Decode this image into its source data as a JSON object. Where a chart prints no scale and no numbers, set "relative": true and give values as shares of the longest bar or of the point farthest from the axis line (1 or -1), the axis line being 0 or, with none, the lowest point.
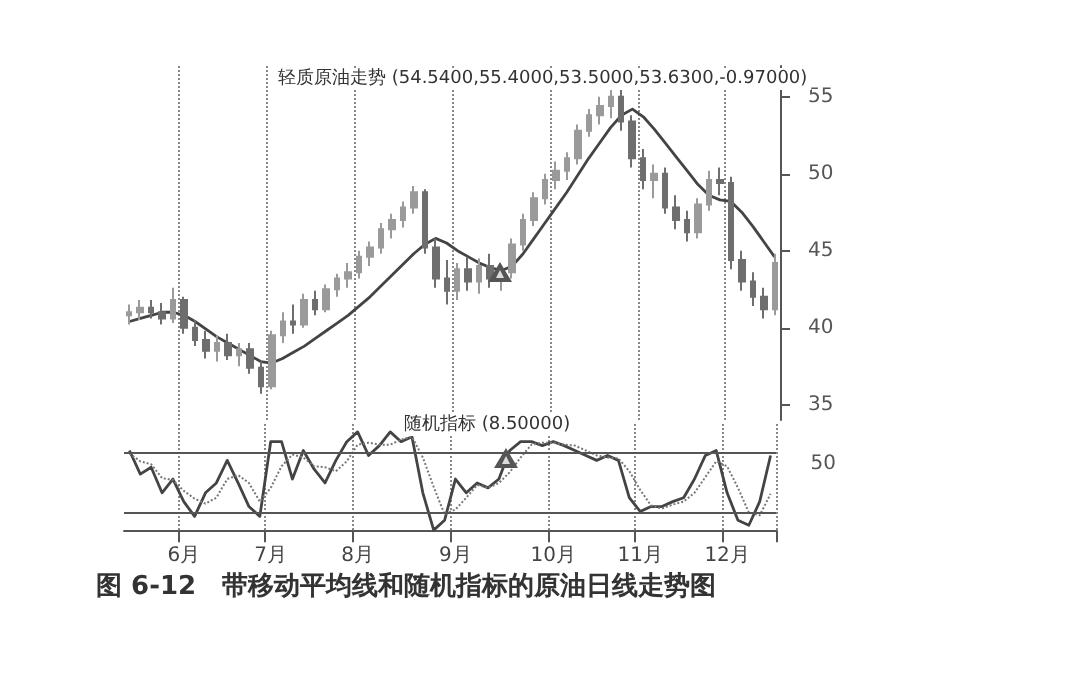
{
  "chart_data": [
    {
      "type": "candlestick",
      "title": "轻质原油走势 (54.5400,55.4000,53.5000,53.6300,-0.97000)",
      "colors": [
        "#9a9a9a",
        "#9a9a9a",
        "#6e6e6e",
        "#6e6e6e",
        "#9a9a9a",
        "#6e6e6e",
        "#6e6e6e",
        "#6e6e6e",
        "#9a9a9a",
        "#6e6e6e",
        "#9a9a9a",
        "#6e6e6e",
        "#6e6e6e",
        "#9a9a9a",
        "#9a9a9a",
        "#6e6e6e",
        "#9a9a9a",
        "#6e6e6e",
        "#9a9a9a",
        "#9a9a9a",
        "#9a9a9a",
        "#9a9a9a",
        "#9a9a9a",
        "#9a9a9a",
        "#9a9a9a",
        "#9a9a9a",
        "#9a9a9a",
        "#6e6e6e",
        "#6e6e6e",
        "#6e6e6e",
        "#9a9a9a",
        "#6e6e6e",
        "#9a9a9a",
        "#6e6e6e",
        "#9a9a9a",
        "#9a9a9a",
        "#9a9a9a",
        "#9a9a9a",
        "#9a9a9a",
        "#9a9a9a",
        "#9a9a9a",
        "#9a9a9a",
        "#9a9a9a",
        "#9a9a9a",
        "#9a9a9a",
        "#6e6e6e",
        "#6e6e6e",
        "#6e6e6e",
        "#9a9a9a",
        "#6e6e6e",
        "#6e6e6e",
        "#6e6e6e",
        "#9a9a9a",
        "#9a9a9a",
        "#6e6e6e",
        "#6e6e6e",
        "#6e6e6e",
        "#6e6e6e",
        "#6e6e6e",
        "#9a9a9a"
      ],
      "categories": [
        null,
        null,
        null,
        null,
        null,
        null,
        null,
        null,
        null,
        null,
        null,
        null,
        null,
        null,
        null,
        null,
        null,
        null,
        null,
        null,
        null,
        null,
        null,
        null,
        null,
        null,
        null,
        null,
        null,
        null,
        null,
        null,
        null,
        null,
        null,
        null,
        null,
        null,
        null,
        null,
        null,
        null,
        null,
        null,
        null,
        null,
        null,
        null,
        null,
        null,
        null,
        null,
        null,
        null,
        null,
        null,
        null,
        null,
        null,
        null
      ],
      "ohlc": [
        [
          40.8,
          41.5,
          40.2,
          41
        ],
        [
          41,
          41.8,
          40.5,
          41.3
        ],
        [
          41.3,
          41.8,
          40.6,
          41
        ],
        [
          41,
          41.6,
          40.2,
          40.6
        ],
        [
          40.6,
          42.6,
          40.3,
          41.8
        ],
        [
          41.8,
          42,
          39.6,
          40
        ],
        [
          40,
          40.5,
          38.8,
          39.2
        ],
        [
          39.2,
          39.8,
          38,
          38.5
        ],
        [
          38.5,
          39.5,
          37.8,
          39
        ],
        [
          39,
          39.6,
          37.9,
          38.2
        ],
        [
          38.2,
          39,
          37.5,
          38.6
        ],
        [
          38.6,
          39,
          37,
          37.4
        ],
        [
          37.4,
          37.8,
          35.7,
          36.2
        ],
        [
          36.2,
          39.8,
          36,
          39.5
        ],
        [
          39.5,
          41,
          39,
          40.4
        ],
        [
          40.4,
          41.5,
          39.6,
          40.2
        ],
        [
          40.2,
          42.2,
          40,
          41.8
        ],
        [
          41.8,
          42.4,
          40.8,
          41.2
        ],
        [
          41.2,
          42.8,
          41,
          42.5
        ],
        [
          42.5,
          43.5,
          42,
          43.2
        ],
        [
          43.2,
          44.2,
          42.6,
          43.6
        ],
        [
          43.6,
          45,
          43.2,
          44.6
        ],
        [
          44.6,
          45.6,
          44,
          45.2
        ],
        [
          45.2,
          46.8,
          44.8,
          46.4
        ],
        [
          46.4,
          47.4,
          45.8,
          47
        ],
        [
          47,
          48.2,
          46.5,
          47.8
        ],
        [
          47.8,
          49.2,
          47.4,
          48.8
        ],
        [
          48.8,
          49,
          44.8,
          45.2
        ],
        [
          45.2,
          45.8,
          42.6,
          43.2
        ],
        [
          43.2,
          44.4,
          41.5,
          42.4
        ],
        [
          42.4,
          44.2,
          41.8,
          43.8
        ],
        [
          43.8,
          44.6,
          42.4,
          43
        ],
        [
          43,
          44.5,
          42.2,
          44
        ],
        [
          44,
          44.8,
          42.6,
          43.2
        ],
        [
          43.2,
          44,
          42.4,
          43.6
        ],
        [
          43.6,
          45.8,
          43.2,
          45.4
        ],
        [
          45.4,
          47.4,
          45,
          47
        ],
        [
          47,
          48.8,
          46.6,
          48.4
        ],
        [
          48.4,
          50,
          48,
          49.6
        ],
        [
          49.6,
          50.8,
          49,
          50.2
        ],
        [
          50.2,
          51.4,
          49.6,
          51
        ],
        [
          51,
          53.2,
          50.6,
          52.8
        ],
        [
          52.8,
          54.2,
          52.4,
          53.8
        ],
        [
          53.8,
          55,
          53.2,
          54.4
        ],
        [
          54.4,
          55.6,
          53.6,
          55
        ],
        [
          55,
          55.6,
          52.8,
          53.4
        ],
        [
          53.4,
          53.8,
          50.4,
          51
        ],
        [
          51,
          51.6,
          49,
          49.6
        ],
        [
          49.6,
          50.6,
          48.4,
          50
        ],
        [
          50,
          50.4,
          47.4,
          47.8
        ],
        [
          47.8,
          48.6,
          46.4,
          47
        ],
        [
          47,
          47.6,
          45.6,
          46.2
        ],
        [
          46.2,
          48.4,
          45.8,
          48
        ],
        [
          48,
          50.2,
          47.6,
          49.6
        ],
        [
          49.6,
          50.4,
          48.6,
          49.4
        ],
        [
          49.4,
          49.8,
          43.8,
          44.4
        ],
        [
          44.4,
          45,
          42.4,
          43
        ],
        [
          43,
          43.6,
          41.4,
          42
        ],
        [
          42,
          42.6,
          40.6,
          41.2
        ],
        [
          41.2,
          44.8,
          40.8,
          44.2
        ]
      ],
      "series": [
        {
          "type": "line",
          "color": "#444444",
          "values": [
            40.4,
            40.6,
            40.8,
            41,
            41,
            40.8,
            40.4,
            39.9,
            39.4,
            39,
            38.6,
            38.2,
            37.8,
            37.7,
            38,
            38.4,
            38.8,
            39.3,
            39.8,
            40.3,
            40.8,
            41.4,
            42,
            42.7,
            43.4,
            44.1,
            44.8,
            45.4,
            45.8,
            45.5,
            45,
            44.6,
            44.2,
            43.9,
            43.7,
            44,
            44.8,
            45.8,
            46.8,
            47.8,
            48.8,
            49.9,
            51,
            52,
            53,
            53.8,
            54.2,
            53.7,
            52.9,
            52,
            51.1,
            50.2,
            49.3,
            48.6,
            48.3,
            48.2,
            47.5,
            46.6,
            45.6,
            44.6
          ]
        }
      ],
      "ylim": [
        34,
        57
      ],
      "yticks": [
        35,
        40,
        45,
        50,
        55
      ],
      "grid": "x",
      "tick_labels": "y",
      "marker": "none"
    },
    {
      "type": "line",
      "title": "随机指标 (8.50000)",
      "relative": true,
      "categories": [
        null,
        null,
        null,
        null,
        null,
        "6月",
        null,
        null,
        null,
        null,
        null,
        null,
        null,
        "7月",
        null,
        null,
        null,
        null,
        null,
        null,
        null,
        "8月",
        null,
        null,
        null,
        null,
        null,
        null,
        null,
        null,
        "9月",
        null,
        null,
        null,
        null,
        null,
        null,
        null,
        null,
        "10月",
        null,
        null,
        null,
        null,
        null,
        null,
        null,
        "11月",
        null,
        null,
        null,
        null,
        null,
        null,
        null,
        "12月",
        null,
        null,
        null,
        null
      ],
      "series": [
        {
          "color": "#444444",
          "line_style": "solid",
          "values": [
            0.81,
            0.57,
            0.64,
            0.38,
            0.52,
            0.29,
            0.14,
            0.38,
            0.48,
            0.71,
            0.48,
            0.24,
            0.14,
            0.9,
            0.9,
            0.52,
            0.81,
            0.62,
            0.48,
            0.71,
            0.9,
            1,
            0.76,
            0.86,
            1,
            0.9,
            0.95,
            0.38,
            0,
            0.1,
            0.52,
            0.38,
            0.48,
            0.43,
            0.52,
            0.81,
            0.9,
            0.9,
            0.86,
            0.9,
            0.86,
            0.81,
            0.76,
            0.71,
            0.76,
            0.71,
            0.33,
            0.19,
            0.24,
            0.24,
            0.29,
            0.33,
            0.52,
            0.76,
            0.81,
            0.38,
            0.1,
            0.05,
            0.29,
            0.76
          ]
        },
        {
          "color": "#777777",
          "line_style": "dotted",
          "values": [
            0.78,
            0.7,
            0.67,
            0.53,
            0.51,
            0.4,
            0.32,
            0.27,
            0.33,
            0.52,
            0.56,
            0.48,
            0.29,
            0.43,
            0.65,
            0.77,
            0.74,
            0.65,
            0.64,
            0.6,
            0.7,
            0.87,
            0.89,
            0.87,
            0.87,
            0.92,
            0.95,
            0.74,
            0.44,
            0.16,
            0.21,
            0.33,
            0.46,
            0.43,
            0.48,
            0.59,
            0.74,
            0.87,
            0.89,
            0.89,
            0.87,
            0.86,
            0.81,
            0.76,
            0.74,
            0.73,
            0.6,
            0.41,
            0.25,
            0.22,
            0.26,
            0.29,
            0.38,
            0.54,
            0.7,
            0.65,
            0.43,
            0.18,
            0.15,
            0.37
          ]
        }
      ],
      "ref_lines": [
        {
          "axis": "y",
          "value": 0.8,
          "color": "#555555"
        },
        {
          "axis": "y",
          "value": 0.17,
          "color": "#555555"
        }
      ],
      "grid": "x",
      "marker": "none",
      "annotations": [
        "50",
        "图 6-12　带移动平均线和随机指标的原油日线走势图"
      ]
    }
  ]
}
